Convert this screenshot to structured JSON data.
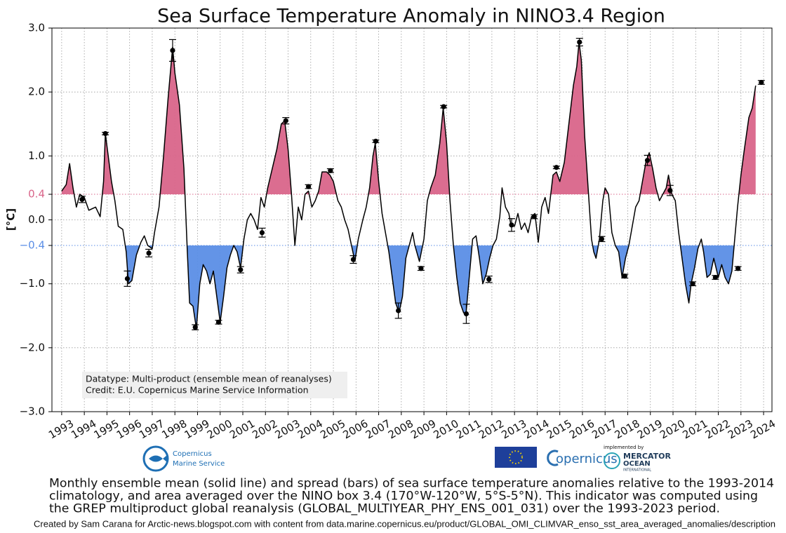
{
  "chart_data": {
    "type": "line",
    "title": "Sea Surface Temperature Anomaly in NINO3.4 Region",
    "y_label": "[°C]",
    "annotation": [
      "Datatype: Multi-product (ensemble mean of reanalyses)",
      "Credit: E.U. Copernicus Marine Service Information"
    ],
    "xlim": [
      1992.57,
      2024.37
    ],
    "xticks": [
      1993,
      1994,
      1995,
      1996,
      1997,
      1998,
      1999,
      2000,
      2001,
      2002,
      2003,
      2004,
      2005,
      2006,
      2007,
      2008,
      2009,
      2010,
      2011,
      2012,
      2013,
      2014,
      2015,
      2016,
      2017,
      2018,
      2019,
      2020,
      2021,
      2022,
      2023,
      2024
    ],
    "ylim": [
      -3,
      3
    ],
    "yticks": [
      {
        "value": -3,
        "label": "−3.0"
      },
      {
        "value": -2,
        "label": "−2.0"
      },
      {
        "value": -1,
        "label": "−1.0"
      },
      {
        "value": -0.4,
        "label": "−0.4"
      },
      {
        "value": 0,
        "label": "0.0"
      },
      0.4,
      {
        "value": 1,
        "label": "1.0"
      },
      {
        "value": 2,
        "label": "2.0"
      },
      {
        "value": 3,
        "label": "3.0"
      }
    ],
    "grid": true,
    "thresholds": [
      {
        "value": 0.4,
        "color": "#d9658a"
      },
      {
        "value": -0.4,
        "color": "#5b8ee6"
      }
    ],
    "series": [
      {
        "color": "#000000",
        "x": [
          1993.0,
          1993.2,
          1993.35,
          1993.5,
          1993.65,
          1993.8,
          1994.0,
          1994.2,
          1994.5,
          1994.7,
          1994.85,
          1994.93,
          1995.2,
          1995.35,
          1995.5,
          1995.7,
          1995.85,
          1995.95,
          1996.1,
          1996.3,
          1996.5,
          1996.65,
          1996.8,
          1997.0,
          1997.1,
          1997.3,
          1997.5,
          1997.7,
          1997.9,
          1998.0,
          1998.2,
          1998.4,
          1998.55,
          1998.65,
          1998.8,
          1998.95,
          1999.1,
          1999.25,
          1999.4,
          1999.55,
          1999.7,
          1999.85,
          2000.0,
          2000.15,
          2000.3,
          2000.45,
          2000.6,
          2000.75,
          2000.9,
          2001.05,
          2001.2,
          2001.35,
          2001.5,
          2001.65,
          2001.8,
          2001.95,
          2002.1,
          2002.3,
          2002.5,
          2002.7,
          2002.85,
          2003.0,
          2003.15,
          2003.3,
          2003.45,
          2003.6,
          2003.75,
          2003.9,
          2004.05,
          2004.2,
          2004.35,
          2004.5,
          2004.7,
          2004.85,
          2005.0,
          2005.2,
          2005.35,
          2005.5,
          2005.65,
          2005.8,
          2005.95,
          2006.1,
          2006.3,
          2006.45,
          2006.6,
          2006.75,
          2006.85,
          2007.0,
          2007.15,
          2007.3,
          2007.45,
          2007.6,
          2007.75,
          2007.9,
          2008.05,
          2008.2,
          2008.35,
          2008.5,
          2008.6,
          2008.8,
          2009.0,
          2009.15,
          2009.3,
          2009.5,
          2009.7,
          2009.85,
          2010.0,
          2010.15,
          2010.3,
          2010.45,
          2010.6,
          2010.75,
          2010.85,
          2011.0,
          2011.15,
          2011.3,
          2011.45,
          2011.6,
          2011.75,
          2011.9,
          2012.05,
          2012.2,
          2012.35,
          2012.45,
          2012.6,
          2012.75,
          2012.85,
          2013.0,
          2013.15,
          2013.3,
          2013.45,
          2013.6,
          2013.75,
          2013.9,
          2014.05,
          2014.2,
          2014.35,
          2014.5,
          2014.7,
          2014.85,
          2015.0,
          2015.2,
          2015.4,
          2015.6,
          2015.75,
          2015.85,
          2015.95,
          2016.1,
          2016.25,
          2016.4,
          2016.5,
          2016.6,
          2016.75,
          2016.9,
          2017.0,
          2017.15,
          2017.3,
          2017.45,
          2017.6,
          2017.75,
          2017.9,
          2018.05,
          2018.2,
          2018.35,
          2018.5,
          2018.65,
          2018.8,
          2018.95,
          2019.1,
          2019.25,
          2019.4,
          2019.55,
          2019.7,
          2019.8,
          2019.95,
          2020.1,
          2020.25,
          2020.4,
          2020.55,
          2020.7,
          2020.8,
          2020.95,
          2021.1,
          2021.25,
          2021.35,
          2021.5,
          2021.65,
          2021.8,
          2022.0,
          2022.15,
          2022.3,
          2022.45,
          2022.6,
          2022.7,
          2022.85,
          2023.0,
          2023.15,
          2023.35,
          2023.5,
          2023.65
        ],
        "values": [
          0.45,
          0.55,
          0.88,
          0.5,
          0.2,
          0.4,
          0.35,
          0.15,
          0.2,
          0.05,
          0.6,
          1.35,
          0.6,
          0.3,
          -0.1,
          -0.15,
          -0.5,
          -1.0,
          -0.95,
          -0.55,
          -0.35,
          -0.25,
          -0.4,
          -0.45,
          -0.2,
          0.2,
          1.0,
          1.9,
          2.7,
          2.3,
          1.8,
          0.8,
          -0.5,
          -1.3,
          -1.35,
          -1.7,
          -1.0,
          -0.7,
          -0.8,
          -1.0,
          -0.8,
          -1.2,
          -1.6,
          -1.2,
          -0.75,
          -0.55,
          -0.4,
          -0.5,
          -0.75,
          -0.3,
          0.0,
          0.1,
          0.0,
          -0.15,
          0.35,
          0.2,
          0.5,
          0.8,
          1.1,
          1.5,
          1.55,
          1.1,
          0.4,
          -0.4,
          0.2,
          0.0,
          0.4,
          0.45,
          0.2,
          0.3,
          0.45,
          0.75,
          0.75,
          0.7,
          0.6,
          0.3,
          0.2,
          0.0,
          -0.15,
          -0.4,
          -0.65,
          -0.3,
          0.0,
          0.2,
          0.5,
          1.0,
          1.2,
          0.6,
          0.1,
          -0.2,
          -0.5,
          -0.9,
          -1.3,
          -1.45,
          -1.2,
          -0.6,
          -0.4,
          -0.2,
          -0.4,
          -0.65,
          -0.3,
          0.3,
          0.5,
          0.7,
          1.2,
          1.75,
          1.2,
          0.3,
          -0.4,
          -0.9,
          -1.3,
          -1.45,
          -1.5,
          -0.9,
          -0.3,
          -0.25,
          -0.6,
          -1.0,
          -0.85,
          -0.6,
          -0.4,
          -0.3,
          0.05,
          0.5,
          0.2,
          0.1,
          -0.1,
          -0.1,
          0.1,
          -0.15,
          -0.05,
          -0.2,
          0.05,
          0.1,
          -0.35,
          0.2,
          0.35,
          0.1,
          0.7,
          0.75,
          0.6,
          0.9,
          1.5,
          2.1,
          2.4,
          2.78,
          2.5,
          1.3,
          0.5,
          -0.3,
          -0.5,
          -0.6,
          -0.3,
          0.3,
          0.5,
          0.4,
          -0.2,
          -0.4,
          -0.5,
          -0.9,
          -0.6,
          -0.4,
          -0.1,
          0.2,
          0.3,
          0.6,
          0.9,
          1.05,
          0.8,
          0.5,
          0.3,
          0.4,
          0.5,
          0.7,
          0.4,
          0.3,
          -0.2,
          -0.6,
          -1.0,
          -1.3,
          -1.0,
          -0.75,
          -0.45,
          -0.3,
          -0.5,
          -0.9,
          -0.85,
          -0.6,
          -0.9,
          -0.7,
          -0.9,
          -1.0,
          -0.8,
          -0.4,
          0.2,
          0.7,
          1.1,
          1.6,
          1.75,
          2.1
        ]
      }
    ],
    "ensemble": {
      "color": "#000000",
      "x": [
        1993.9,
        1994.93,
        1995.9,
        1996.85,
        1997.9,
        1998.9,
        1999.93,
        2000.9,
        2001.85,
        2002.9,
        2003.9,
        2004.87,
        2005.88,
        2006.87,
        2007.87,
        2008.87,
        2009.87,
        2010.87,
        2011.87,
        2012.87,
        2013.87,
        2014.85,
        2015.87,
        2016.85,
        2017.87,
        2018.87,
        2019.87,
        2020.87,
        2021.87,
        2022.87,
        2023.9
      ],
      "values": [
        0.32,
        1.35,
        -0.92,
        -0.52,
        2.65,
        -1.68,
        -1.6,
        -0.78,
        -0.2,
        1.55,
        0.52,
        0.77,
        -0.62,
        1.23,
        -1.42,
        -0.76,
        1.77,
        -1.47,
        -0.93,
        -0.08,
        0.05,
        0.82,
        2.78,
        -0.3,
        -0.88,
        0.93,
        0.46,
        -1.0,
        -0.9,
        -0.76,
        2.15
      ],
      "errors": [
        0.05,
        0.02,
        0.12,
        0.06,
        0.17,
        0.04,
        0.03,
        0.05,
        0.07,
        0.05,
        0.03,
        0.03,
        0.06,
        0.02,
        0.12,
        0.03,
        0.02,
        0.15,
        0.05,
        0.1,
        0.03,
        0.02,
        0.06,
        0.04,
        0.03,
        0.08,
        0.08,
        0.03,
        0.03,
        0.03,
        0.03
      ]
    }
  },
  "logos": {
    "cmems": [
      "Copernicus",
      "Marine Service"
    ],
    "copernicus": "opernicus",
    "mercator": [
      "implemented by",
      "MERCATOR",
      "OCEAN",
      "INTERNATIONAL"
    ]
  },
  "caption": [
    "Monthly ensemble mean (solid line) and spread (bars) of sea surface temperature anomalies relative to the 1993-2014",
    "climatology, and area averaged over the NINO box 3.4 (170°W-120°W, 5°S-5°N). This indicator was computed using",
    "the GREP multiproduct global reanalysis (GLOBAL_MULTIYEAR_PHY_ENS_001_031) over the 1993-2023 period."
  ],
  "credit": "Created by Sam Carana for Arctic-news.blogspot.com with content from data.marine.copernicus.eu/product/GLOBAL_OMI_CLIMVAR_enso_sst_area_averaged_anomalies/description"
}
